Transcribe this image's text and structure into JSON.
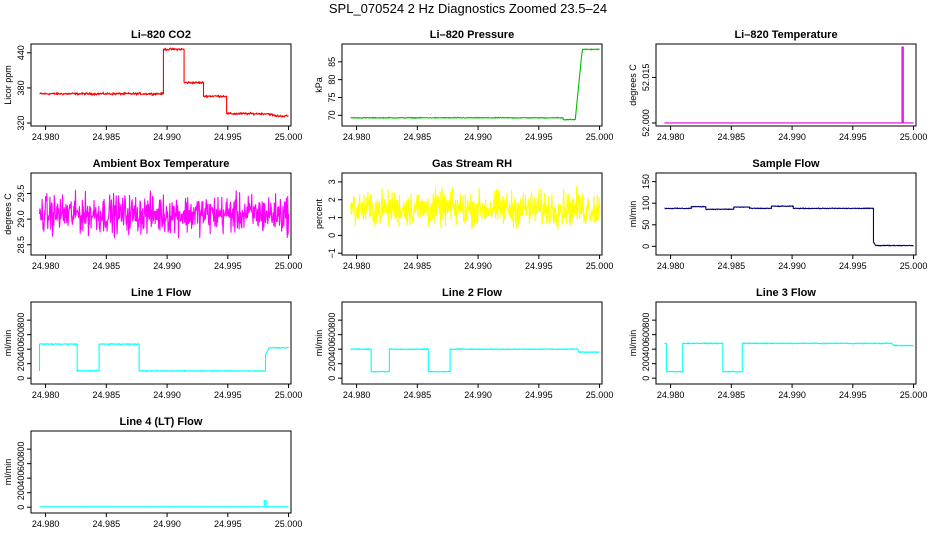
{
  "page_title": "SPL_070524  2 Hz Diagnostics Zoomed 23.5–24",
  "chart_data": [
    {
      "type": "line",
      "title": "Li–820 CO2",
      "ylabel": "Licor ppm",
      "color": "#ff0000",
      "xlim": [
        24.9788,
        25.0002
      ],
      "ylim": [
        315,
        455
      ],
      "xticks": [
        24.98,
        24.985,
        24.99,
        24.995,
        25.0
      ],
      "xtick_labels": [
        "24.980",
        "24.985",
        "24.990",
        "24.995",
        "25.000"
      ],
      "yticks": [
        320,
        380,
        440
      ],
      "ytick_labels": [
        "320",
        "380",
        "440"
      ],
      "x": [
        24.9795,
        24.9897,
        24.9897,
        24.9914,
        24.9914,
        24.993,
        24.993,
        24.9949,
        24.9949,
        24.998,
        24.9982,
        24.9983,
        24.999,
        25.0
      ],
      "y": [
        370,
        370,
        446,
        446,
        389,
        389,
        366,
        366,
        336,
        336,
        336,
        336,
        332,
        332
      ],
      "noise": 1.5
    },
    {
      "type": "line",
      "title": "Li–820 Pressure",
      "ylabel": "kPa",
      "color": "#00c000",
      "xlim": [
        24.9788,
        25.0002
      ],
      "ylim": [
        67,
        90
      ],
      "xticks": [
        24.98,
        24.985,
        24.99,
        24.995,
        25.0
      ],
      "xtick_labels": [
        "24.980",
        "24.985",
        "24.990",
        "24.995",
        "25.000"
      ],
      "yticks": [
        70,
        75,
        80,
        85
      ],
      "ytick_labels": [
        "70",
        "75",
        "80",
        "85"
      ],
      "x": [
        24.9795,
        24.997,
        24.997,
        24.998,
        24.9985,
        24.9986,
        25.0
      ],
      "y": [
        69.3,
        69.3,
        68.8,
        68.8,
        86,
        88.5,
        88.5
      ],
      "noise": 0.1
    },
    {
      "type": "line",
      "title": "Li–820 Temperature",
      "ylabel": "degrees C",
      "color": "#e000e0",
      "xlim": [
        24.9788,
        25.0002
      ],
      "ylim": [
        51.999,
        52.026
      ],
      "xticks": [
        24.98,
        24.985,
        24.99,
        24.995,
        25.0
      ],
      "xtick_labels": [
        "24.980",
        "24.985",
        "24.990",
        "24.995",
        "25.000"
      ],
      "yticks": [
        52.0,
        52.015
      ],
      "ytick_labels": [
        "52.000",
        "52.015"
      ],
      "x": [
        24.9795,
        24.99905,
        24.99905,
        24.99915,
        24.99915,
        25.0
      ],
      "y": [
        52.0,
        52.0,
        52.025,
        52.025,
        52.0,
        52.0
      ],
      "noise": 0
    },
    {
      "type": "line",
      "title": "Ambient Box Temperature",
      "ylabel": "degrees C",
      "color": "#ff00ff",
      "xlim": [
        24.9788,
        25.0002
      ],
      "ylim": [
        28.3,
        29.9
      ],
      "xticks": [
        24.98,
        24.985,
        24.99,
        24.995,
        25.0
      ],
      "xtick_labels": [
        "24.980",
        "24.985",
        "24.990",
        "24.995",
        "25.000"
      ],
      "yticks": [
        28.5,
        29.0,
        29.5
      ],
      "ytick_labels": [
        "28.5",
        "29.0",
        "29.5"
      ],
      "x": [
        24.9795,
        25.0
      ],
      "y": [
        29.1,
        29.1
      ],
      "noise": 0.28
    },
    {
      "type": "line",
      "title": "Gas Stream RH",
      "ylabel": "percent",
      "color": "#ffff00",
      "xlim": [
        24.9788,
        25.0002
      ],
      "ylim": [
        -1.1,
        3.5
      ],
      "xticks": [
        24.98,
        24.985,
        24.99,
        24.995,
        25.0
      ],
      "xtick_labels": [
        "24.980",
        "24.985",
        "24.990",
        "24.995",
        "25.000"
      ],
      "yticks": [
        -1,
        0,
        1,
        2,
        3
      ],
      "ytick_labels": [
        "−1",
        "0",
        "1",
        "2",
        "3"
      ],
      "x": [
        24.9795,
        25.0
      ],
      "y": [
        1.5,
        1.5
      ],
      "noise": 0.75
    },
    {
      "type": "line",
      "title": "Sample Flow",
      "ylabel": "ml/min",
      "color": "#000080",
      "xlim": [
        24.9788,
        25.0002
      ],
      "ylim": [
        -20,
        170
      ],
      "xticks": [
        24.98,
        24.985,
        24.99,
        24.995,
        25.0
      ],
      "xtick_labels": [
        "24.980",
        "24.985",
        "24.990",
        "24.995",
        "25.000"
      ],
      "yticks": [
        0,
        50,
        100,
        150
      ],
      "ytick_labels": [
        "0",
        "50",
        "100",
        "150"
      ],
      "x": [
        24.9795,
        24.9817,
        24.9817,
        24.9829,
        24.9829,
        24.9852,
        24.9852,
        24.9865,
        24.9865,
        24.9883,
        24.9883,
        24.9901,
        24.9901,
        24.9967,
        24.9967,
        24.9969,
        25.0
      ],
      "y": [
        88,
        88,
        92,
        92,
        86,
        86,
        91,
        91,
        88,
        88,
        93,
        93,
        88,
        88,
        10,
        2,
        2
      ],
      "noise": 0.7
    },
    {
      "type": "line",
      "title": "Line 1 Flow",
      "ylabel": "ml/min",
      "color": "#00ffff",
      "xlim": [
        24.9788,
        25.0002
      ],
      "ylim": [
        -80,
        1050
      ],
      "xticks": [
        24.98,
        24.985,
        24.99,
        24.995,
        25.0
      ],
      "xtick_labels": [
        "24.980",
        "24.985",
        "24.990",
        "24.995",
        "25.000"
      ],
      "yticks": [
        0,
        200,
        400,
        600,
        800
      ],
      "ytick_labels": [
        "0",
        "200",
        "400",
        "600",
        "800"
      ],
      "x": [
        24.9795,
        24.9795,
        24.9826,
        24.9826,
        24.9844,
        24.9844,
        24.9877,
        24.9877,
        24.9981,
        24.9981,
        24.9984,
        25.0
      ],
      "y": [
        100,
        470,
        470,
        100,
        100,
        470,
        470,
        100,
        100,
        320,
        420,
        420
      ],
      "noise": 5
    },
    {
      "type": "line",
      "title": "Line 2 Flow",
      "ylabel": "ml/min",
      "color": "#00ffff",
      "xlim": [
        24.9788,
        25.0002
      ],
      "ylim": [
        -80,
        1050
      ],
      "xticks": [
        24.98,
        24.985,
        24.99,
        24.995,
        25.0
      ],
      "xtick_labels": [
        "24.980",
        "24.985",
        "24.990",
        "24.995",
        "25.000"
      ],
      "yticks": [
        0,
        200,
        400,
        600,
        800
      ],
      "ytick_labels": [
        "0",
        "200",
        "400",
        "600",
        "800"
      ],
      "x": [
        24.9795,
        24.9812,
        24.9812,
        24.9827,
        24.9827,
        24.9859,
        24.9859,
        24.9877,
        24.9877,
        24.9982,
        24.9983,
        25.0
      ],
      "y": [
        400,
        400,
        90,
        90,
        400,
        400,
        90,
        90,
        400,
        400,
        360,
        360
      ],
      "noise": 5
    },
    {
      "type": "line",
      "title": "Line 3 Flow",
      "ylabel": "ml/min",
      "color": "#00ffff",
      "xlim": [
        24.9788,
        25.0002
      ],
      "ylim": [
        -80,
        1050
      ],
      "xticks": [
        24.98,
        24.985,
        24.99,
        24.995,
        25.0
      ],
      "xtick_labels": [
        "24.980",
        "24.985",
        "24.990",
        "24.995",
        "25.000"
      ],
      "yticks": [
        0,
        200,
        400,
        600,
        800
      ],
      "ytick_labels": [
        "0",
        "200",
        "400",
        "600",
        "800"
      ],
      "x": [
        24.9795,
        24.9795,
        24.97965,
        24.97965,
        24.981,
        24.981,
        24.9843,
        24.9843,
        24.9859,
        24.9859,
        24.9982,
        24.9984,
        25.0
      ],
      "y": [
        480,
        480,
        480,
        90,
        90,
        480,
        480,
        90,
        90,
        480,
        480,
        450,
        450
      ],
      "noise": 5
    },
    {
      "type": "line",
      "title": "Line 4 (LT) Flow",
      "ylabel": "ml/min",
      "color": "#00ffff",
      "xlim": [
        24.9788,
        25.0002
      ],
      "ylim": [
        -80,
        1050
      ],
      "xticks": [
        24.98,
        24.985,
        24.99,
        24.995,
        25.0
      ],
      "xtick_labels": [
        "24.980",
        "24.985",
        "24.990",
        "24.995",
        "25.000"
      ],
      "yticks": [
        0,
        200,
        400,
        600,
        800
      ],
      "ytick_labels": [
        "0",
        "200",
        "400",
        "600",
        "800"
      ],
      "x": [
        24.9795,
        24.998,
        24.998,
        24.99815,
        24.99815,
        25.0
      ],
      "y": [
        5,
        5,
        90,
        90,
        5,
        5
      ],
      "noise": 0.5
    }
  ]
}
